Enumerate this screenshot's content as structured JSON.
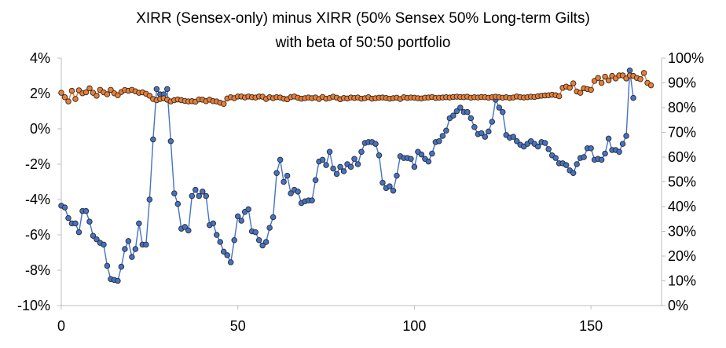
{
  "chart_data": {
    "type": "line",
    "title": "XIRR (Sensex-only) minus XIRR (50% Sensex 50% Long-term Gilts)",
    "subtitle": "with beta of 50:50 portfolio",
    "xlabel": "",
    "ylabel": "",
    "y2label": "",
    "xlim": [
      0,
      170
    ],
    "ylim": [
      -0.1,
      0.04
    ],
    "y2lim": [
      0,
      1.0
    ],
    "grid": false,
    "x_ticks": [
      "0",
      "50",
      "100",
      "150"
    ],
    "x_tick_values": [
      0,
      50,
      100,
      150
    ],
    "y_ticks": [
      "4%",
      "2%",
      "0%",
      "-2%",
      "-4%",
      "-6%",
      "-8%",
      "-10%"
    ],
    "y_tick_values": [
      0.04,
      0.02,
      0,
      -0.02,
      -0.04,
      -0.06,
      -0.08,
      -0.1
    ],
    "y2_ticks": [
      "100%",
      "90%",
      "80%",
      "70%",
      "60%",
      "50%",
      "40%",
      "30%",
      "20%",
      "10%",
      "0%"
    ],
    "y2_tick_values": [
      1.0,
      0.9,
      0.8,
      0.7,
      0.6,
      0.5,
      0.4,
      0.3,
      0.2,
      0.1,
      0.0
    ],
    "series": [
      {
        "axis": "left",
        "color": "#4472C4",
        "marker_fill": "#4472C4",
        "values": [
          -0.0435,
          -0.0445,
          -0.0505,
          -0.0535,
          -0.0535,
          -0.0585,
          -0.0465,
          -0.0465,
          -0.0525,
          -0.0605,
          -0.0625,
          -0.0645,
          -0.0655,
          -0.0775,
          -0.085,
          -0.0855,
          -0.086,
          -0.078,
          -0.068,
          -0.0635,
          -0.0725,
          -0.068,
          -0.0535,
          -0.0655,
          -0.0655,
          -0.04,
          -0.006,
          0.0225,
          0.0195,
          0.0195,
          0.0225,
          -0.007,
          -0.0365,
          -0.0425,
          -0.0565,
          -0.0555,
          -0.0575,
          -0.038,
          -0.0345,
          -0.038,
          -0.0355,
          -0.038,
          -0.0545,
          -0.0535,
          -0.06,
          -0.064,
          -0.0695,
          -0.0715,
          -0.0755,
          -0.063,
          -0.0495,
          -0.052,
          -0.047,
          -0.0455,
          -0.058,
          -0.0585,
          -0.063,
          -0.066,
          -0.064,
          -0.056,
          -0.05,
          -0.025,
          -0.0175,
          -0.03,
          -0.0265,
          -0.0365,
          -0.0345,
          -0.0355,
          -0.042,
          -0.041,
          -0.0405,
          -0.0405,
          -0.029,
          -0.0185,
          -0.0175,
          -0.0205,
          -0.013,
          -0.0225,
          -0.0255,
          -0.0215,
          -0.024,
          -0.02,
          -0.0215,
          -0.017,
          -0.02,
          -0.013,
          -0.008,
          -0.0075,
          -0.0075,
          -0.0085,
          -0.015,
          -0.0305,
          -0.0335,
          -0.0325,
          -0.035,
          -0.0265,
          -0.0155,
          -0.0165,
          -0.0165,
          -0.017,
          -0.0215,
          -0.013,
          -0.0145,
          -0.017,
          -0.0185,
          -0.014,
          -0.0075,
          -0.007,
          -0.004,
          -0.001,
          0.006,
          0.0075,
          0.01,
          0.012,
          0.0095,
          0.0095,
          0.006,
          0.001,
          -0.003,
          -0.0025,
          -0.0045,
          -0.0015,
          0.004,
          0.0165,
          0.012,
          0.0095,
          -0.0035,
          -0.005,
          -0.0045,
          -0.007,
          -0.009,
          -0.01,
          -0.0085,
          -0.007,
          -0.0085,
          -0.01,
          -0.0075,
          -0.008,
          -0.0115,
          -0.015,
          -0.0165,
          -0.0195,
          -0.0195,
          -0.0205,
          -0.0235,
          -0.025,
          -0.02,
          -0.0165,
          -0.016,
          -0.011,
          -0.011,
          -0.0175,
          -0.017,
          -0.0175,
          -0.014,
          -0.0055,
          -0.012,
          -0.012,
          -0.013,
          -0.0085,
          -0.004,
          0.033,
          0.0175
        ]
      },
      {
        "axis": "right",
        "color": "#ED7D31",
        "marker_fill": "#ED7D31",
        "values": [
          0.86,
          0.842,
          0.825,
          0.868,
          0.835,
          0.87,
          0.858,
          0.862,
          0.878,
          0.86,
          0.848,
          0.872,
          0.862,
          0.854,
          0.872,
          0.858,
          0.85,
          0.863,
          0.871,
          0.868,
          0.872,
          0.866,
          0.86,
          0.862,
          0.856,
          0.848,
          0.835,
          0.83,
          0.835,
          0.838,
          0.832,
          0.825,
          0.83,
          0.833,
          0.83,
          0.827,
          0.825,
          0.826,
          0.824,
          0.833,
          0.832,
          0.826,
          0.832,
          0.826,
          0.825,
          0.82,
          0.815,
          0.837,
          0.842,
          0.838,
          0.845,
          0.845,
          0.841,
          0.845,
          0.842,
          0.841,
          0.845,
          0.844,
          0.835,
          0.842,
          0.838,
          0.842,
          0.841,
          0.836,
          0.834,
          0.842,
          0.845,
          0.84,
          0.836,
          0.838,
          0.841,
          0.838,
          0.841,
          0.835,
          0.843,
          0.836,
          0.839,
          0.844,
          0.84,
          0.834,
          0.839,
          0.837,
          0.841,
          0.839,
          0.841,
          0.836,
          0.838,
          0.842,
          0.836,
          0.838,
          0.84,
          0.841,
          0.839,
          0.836,
          0.838,
          0.84,
          0.835,
          0.842,
          0.839,
          0.841,
          0.84,
          0.838,
          0.837,
          0.84,
          0.841,
          0.843,
          0.839,
          0.84,
          0.841,
          0.842,
          0.841,
          0.843,
          0.844,
          0.843,
          0.842,
          0.844,
          0.84,
          0.842,
          0.841,
          0.843,
          0.842,
          0.84,
          0.842,
          0.844,
          0.842,
          0.84,
          0.842,
          0.839,
          0.841,
          0.845,
          0.842,
          0.841,
          0.842,
          0.844,
          0.843,
          0.846,
          0.848,
          0.849,
          0.85,
          0.852,
          0.85,
          0.846,
          0.88,
          0.885,
          0.88,
          0.898,
          0.865,
          0.86,
          0.878,
          0.875,
          0.872,
          0.908,
          0.92,
          0.9,
          0.925,
          0.91,
          0.928,
          0.918,
          0.93,
          0.93,
          0.918,
          0.93,
          0.928,
          0.92,
          0.915,
          0.94,
          0.9,
          0.89
        ]
      }
    ]
  }
}
